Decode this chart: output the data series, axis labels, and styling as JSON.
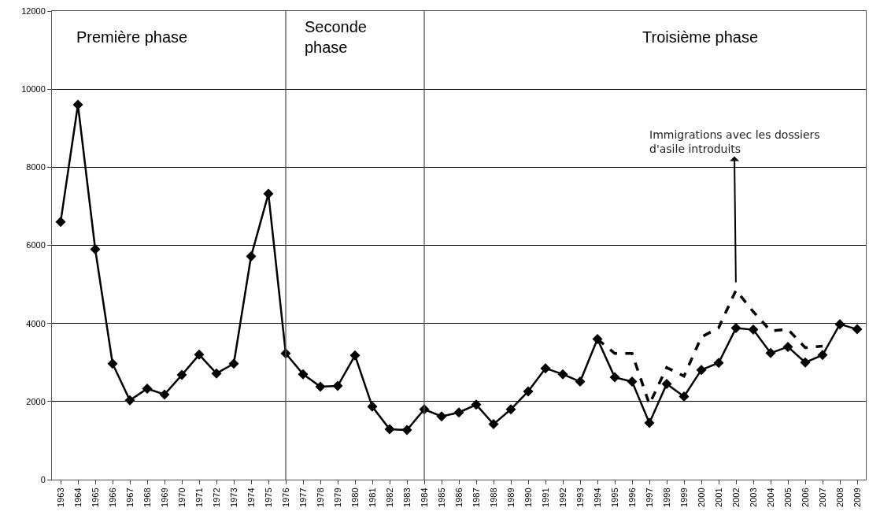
{
  "chart_data": {
    "type": "line",
    "categories": [
      "1963",
      "1964",
      "1965",
      "1966",
      "1967",
      "1968",
      "1969",
      "1970",
      "1971",
      "1972",
      "1973",
      "1974",
      "1975",
      "1976",
      "1977",
      "1978",
      "1979",
      "1980",
      "1981",
      "1982",
      "1983",
      "1984",
      "1985",
      "1986",
      "1987",
      "1988",
      "1989",
      "1990",
      "1991",
      "1992",
      "1993",
      "1994",
      "1995",
      "1996",
      "1997",
      "1998",
      "1999",
      "2000",
      "2001",
      "2002",
      "2003",
      "2004",
      "2005",
      "2006",
      "2007",
      "2008",
      "2009"
    ],
    "series": [
      {
        "color": "#000000",
        "marker": "diamond",
        "line_style": "solid",
        "values": [
          6600,
          9600,
          5900,
          2970,
          2030,
          2330,
          2180,
          2680,
          3200,
          2720,
          2970,
          5720,
          7320,
          3230,
          2700,
          2380,
          2400,
          3180,
          1870,
          1290,
          1270,
          1800,
          1620,
          1720,
          1920,
          1420,
          1800,
          2260,
          2850,
          2700,
          2510,
          3600,
          2620,
          2510,
          1450,
          2450,
          2130,
          2810,
          2990,
          3880,
          3840,
          3240,
          3400,
          3000,
          3190,
          3980,
          3850
        ]
      },
      {
        "color": "#000000",
        "marker": "none",
        "line_style": "dashed",
        "values": [
          null,
          null,
          null,
          null,
          null,
          null,
          null,
          null,
          null,
          null,
          null,
          null,
          null,
          null,
          null,
          null,
          null,
          null,
          null,
          null,
          null,
          null,
          null,
          null,
          null,
          null,
          null,
          null,
          null,
          null,
          null,
          3600,
          3230,
          3230,
          1930,
          2870,
          2650,
          3650,
          3890,
          4850,
          4300,
          3810,
          3850,
          3380,
          3420,
          null,
          null
        ]
      }
    ],
    "ylim": [
      0,
      12000
    ],
    "yticks": [
      0,
      2000,
      4000,
      6000,
      8000,
      10000,
      12000
    ],
    "grid": "y",
    "ref_lines": [
      {
        "axis": "x",
        "value": "1976",
        "color": "#555555"
      },
      {
        "axis": "x",
        "value": "1984",
        "color": "#555555"
      }
    ],
    "annotations": [
      "Première phase",
      "Seconde\nphase",
      "Troisième phase",
      {
        "text": "Immigrations avec les dossiers\nd'asile introduits",
        "x": "2002",
        "y": 4850
      }
    ]
  }
}
